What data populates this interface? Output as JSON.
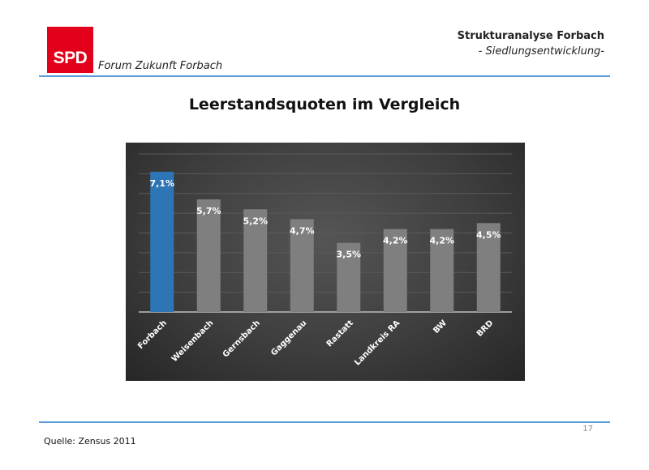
{
  "logo": {
    "text": "SPD",
    "color": "#e2001a"
  },
  "header": {
    "org": "Forum Zukunft Forbach",
    "title": "Strukturanalyse Forbach",
    "subtitle": "- Siedlungsentwicklung-"
  },
  "slide_title": "Leerstandsquoten im Vergleich",
  "chart_data": {
    "type": "bar",
    "title": "",
    "xlabel": "",
    "ylabel": "",
    "categories": [
      "Forbach",
      "Weisenbach",
      "Gernsbach",
      "Gaggenau",
      "Rastatt",
      "Landkreis RA",
      "BW",
      "BRD"
    ],
    "values": [
      7.1,
      5.7,
      5.2,
      4.7,
      3.5,
      4.2,
      4.2,
      4.5
    ],
    "labels": [
      "7,1%",
      "5,7%",
      "5,2%",
      "4,7%",
      "3,5%",
      "4,2%",
      "4,2%",
      "4,5%"
    ],
    "ylim": [
      0,
      8
    ],
    "grid": true,
    "legend": "none",
    "colors": {
      "highlight": "#2e75b6",
      "default": "#7f7f7f",
      "background": "#404040"
    },
    "highlight_index": 0
  },
  "footer": {
    "page_number": "17",
    "source": "Quelle: Zensus 2011"
  }
}
